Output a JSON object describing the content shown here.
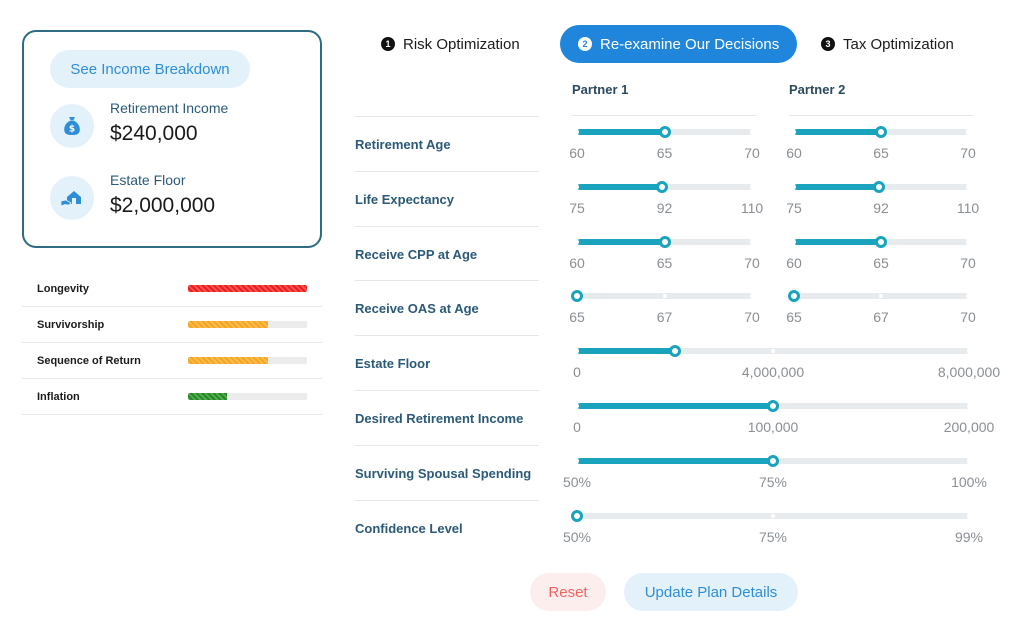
{
  "summary": {
    "breakdown_button": "See Income Breakdown",
    "retirement_income": {
      "label": "Retirement Income",
      "value": "$240,000",
      "icon": "money-bag-icon"
    },
    "estate_floor": {
      "label": "Estate Floor",
      "value": "$2,000,000",
      "icon": "house-hand-icon"
    }
  },
  "risks": [
    {
      "label": "Longevity",
      "level": 1.0,
      "color": "#f01b1b"
    },
    {
      "label": "Survivorship",
      "level": 0.67,
      "color": "#f7a51c"
    },
    {
      "label": "Sequence of Return",
      "level": 0.67,
      "color": "#f7a51c"
    },
    {
      "label": "Inflation",
      "level": 0.33,
      "color": "#1f8a1f"
    }
  ],
  "tabs": [
    {
      "num": "1",
      "label": "Risk Optimization",
      "active": false
    },
    {
      "num": "2",
      "label": "Re-examine Our Decisions",
      "active": true
    },
    {
      "num": "3",
      "label": "Tax Optimization",
      "active": false
    }
  ],
  "partners": [
    "Partner 1",
    "Partner 2"
  ],
  "params": [
    {
      "label": "Retirement Age",
      "split": true,
      "p1": {
        "min": 60,
        "max": 70,
        "value": 65,
        "ticks": [
          "60",
          "65",
          "70"
        ]
      },
      "p2": {
        "min": 60,
        "max": 70,
        "value": 65,
        "ticks": [
          "60",
          "65",
          "70"
        ]
      }
    },
    {
      "label": "Life Expectancy",
      "split": true,
      "p1": {
        "min": 75,
        "max": 110,
        "value": 92,
        "ticks": [
          "75",
          "92",
          "110"
        ]
      },
      "p2": {
        "min": 75,
        "max": 110,
        "value": 92,
        "ticks": [
          "75",
          "92",
          "110"
        ]
      }
    },
    {
      "label": "Receive CPP at Age",
      "split": true,
      "p1": {
        "min": 60,
        "max": 70,
        "value": 65,
        "ticks": [
          "60",
          "65",
          "70"
        ]
      },
      "p2": {
        "min": 60,
        "max": 70,
        "value": 65,
        "ticks": [
          "60",
          "65",
          "70"
        ]
      }
    },
    {
      "label": "Receive OAS at Age",
      "split": true,
      "p1": {
        "min": 65,
        "max": 70,
        "value": 65,
        "ticks": [
          "65",
          "67",
          "70"
        ]
      },
      "p2": {
        "min": 65,
        "max": 70,
        "value": 65,
        "ticks": [
          "65",
          "67",
          "70"
        ]
      }
    },
    {
      "label": "Estate Floor",
      "split": false,
      "full": {
        "min": 0,
        "max": 8000000,
        "value": 2000000,
        "ticks": [
          "0",
          "4,000,000",
          "8,000,000"
        ]
      }
    },
    {
      "label": "Desired Retirement Income",
      "split": false,
      "full": {
        "min": 0,
        "max": 200000,
        "value": 100000,
        "ticks": [
          "0",
          "100,000",
          "200,000"
        ]
      }
    },
    {
      "label": "Surviving Spousal Spending",
      "split": false,
      "full": {
        "min": 50,
        "max": 100,
        "value": 75,
        "ticks": [
          "50%",
          "75%",
          "100%"
        ]
      }
    },
    {
      "label": "Confidence Level",
      "split": false,
      "full": {
        "min": 50,
        "max": 99,
        "value": 50,
        "ticks": [
          "50%",
          "75%",
          "99%"
        ]
      }
    }
  ],
  "actions": {
    "reset": "Reset",
    "update": "Update Plan Details"
  },
  "colors": {
    "accent": "#1aa3bd",
    "primary": "#1f86dc",
    "card_border": "#2e6b84"
  }
}
